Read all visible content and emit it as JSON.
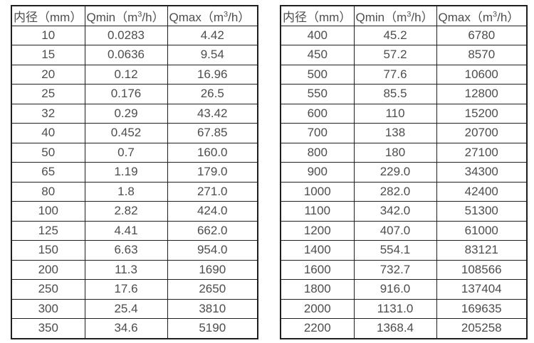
{
  "page": {
    "background_color": "#ffffff",
    "text_color": "#4d4d4d",
    "border_color": "#1f1f1f"
  },
  "tables": [
    {
      "name": "small-diameter-flow-table",
      "header": {
        "col1": "内径（mm）",
        "col2_prefix": "Qmin（m",
        "col2_sup": "3",
        "col2_suffix": "/h）",
        "col3_prefix": "Qmax（m",
        "col3_sup": "3",
        "col3_suffix": "/h）"
      },
      "rows": [
        [
          "10",
          "0.0283",
          "4.42"
        ],
        [
          "15",
          "0.0636",
          "9.54"
        ],
        [
          "20",
          "0.12",
          "16.96"
        ],
        [
          "25",
          "0.176",
          "26.5"
        ],
        [
          "32",
          "0.29",
          "43.42"
        ],
        [
          "40",
          "0.452",
          "67.85"
        ],
        [
          "50",
          "0.7",
          "160.0"
        ],
        [
          "65",
          "1.19",
          "179.0"
        ],
        [
          "80",
          "1.8",
          "271.0"
        ],
        [
          "100",
          "2.82",
          "424.0"
        ],
        [
          "125",
          "4.41",
          "662.0"
        ],
        [
          "150",
          "6.63",
          "954.0"
        ],
        [
          "200",
          "11.3",
          "1690"
        ],
        [
          "250",
          "17.6",
          "2650"
        ],
        [
          "300",
          "25.4",
          "3810"
        ],
        [
          "350",
          "34.6",
          "5190"
        ]
      ]
    },
    {
      "name": "large-diameter-flow-table",
      "header": {
        "col1": "内径（mm）",
        "col2_prefix": "Qmin（m",
        "col2_sup": "3",
        "col2_suffix": "/h）",
        "col3_prefix": "Qmax（m",
        "col3_sup": "3",
        "col3_suffix": "/h）"
      },
      "rows": [
        [
          "400",
          "45.2",
          "6780"
        ],
        [
          "450",
          "57.2",
          "8570"
        ],
        [
          "500",
          "77.6",
          "10600"
        ],
        [
          "550",
          "85.5",
          "12800"
        ],
        [
          "600",
          "110",
          "15200"
        ],
        [
          "700",
          "138",
          "20700"
        ],
        [
          "800",
          "180",
          "27100"
        ],
        [
          "900",
          "229.0",
          "34300"
        ],
        [
          "1000",
          "282.0",
          "42400"
        ],
        [
          "1100",
          "342.0",
          "51300"
        ],
        [
          "1200",
          "407.0",
          "61000"
        ],
        [
          "1400",
          "554.1",
          "83121"
        ],
        [
          "1600",
          "732.7",
          "108566"
        ],
        [
          "1800",
          "916.0",
          "137404"
        ],
        [
          "2000",
          "1131.0",
          "169635"
        ],
        [
          "2200",
          "1368.4",
          "205258"
        ]
      ]
    }
  ]
}
